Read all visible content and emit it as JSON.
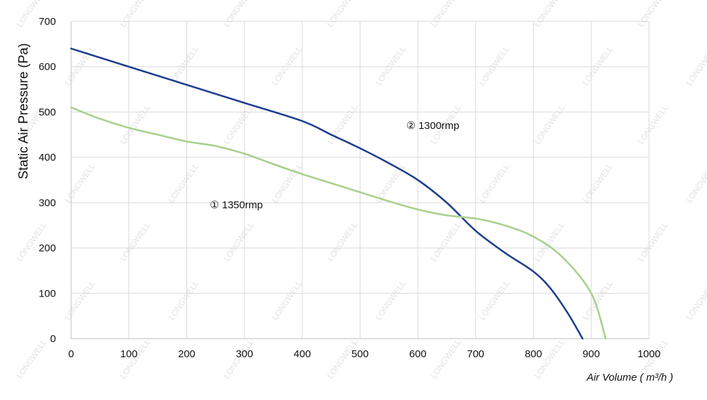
{
  "chart_data": {
    "type": "line",
    "xlabel": "Air Volume ( m³/h )",
    "ylabel": "Static Air Pressure  (Pa)",
    "xlim": [
      0,
      1000
    ],
    "ylim": [
      0,
      700
    ],
    "x_ticks": [
      0,
      100,
      200,
      300,
      400,
      500,
      600,
      700,
      800,
      900,
      1000
    ],
    "y_ticks": [
      0,
      100,
      200,
      300,
      400,
      500,
      600,
      700
    ],
    "grid": true,
    "legend": "none",
    "series": [
      {
        "name": "1300rmp",
        "color": "#1f3f8f",
        "x": [
          0,
          100,
          200,
          300,
          400,
          450,
          500,
          550,
          600,
          650,
          700,
          750,
          800,
          830,
          860,
          885
        ],
        "y": [
          640,
          600,
          560,
          520,
          480,
          450,
          420,
          387,
          350,
          300,
          238,
          190,
          148,
          110,
          55,
          0
        ]
      },
      {
        "name": "1350rmp",
        "color": "#a8d08d",
        "x": [
          0,
          50,
          100,
          150,
          200,
          250,
          300,
          350,
          400,
          450,
          500,
          550,
          600,
          650,
          700,
          750,
          800,
          850,
          900,
          925
        ],
        "y": [
          510,
          485,
          465,
          450,
          435,
          425,
          408,
          385,
          363,
          343,
          323,
          303,
          285,
          272,
          265,
          250,
          225,
          180,
          100,
          0
        ]
      }
    ],
    "annotations": [
      {
        "marker": "②",
        "text": "1300rmp",
        "x": 580,
        "y": 470
      },
      {
        "marker": "①",
        "text": "1350rmp",
        "x": 240,
        "y": 295
      }
    ]
  },
  "watermark": "LONGWELL"
}
